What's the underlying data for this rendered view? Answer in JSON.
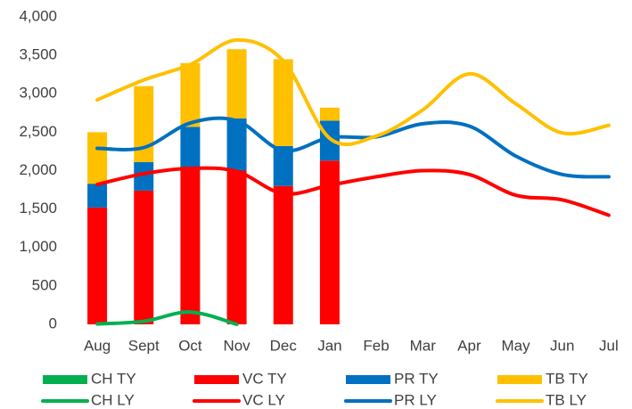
{
  "chart_data": {
    "type": "combo",
    "categories": [
      "Aug",
      "Sept",
      "Oct",
      "Nov",
      "Dec",
      "Jan",
      "Feb",
      "Mar",
      "Apr",
      "May",
      "Jun",
      "Jul"
    ],
    "ylim": [
      0,
      4000
    ],
    "yticks": [
      0,
      500,
      {
        "value": 1000,
        "label": "1,000"
      },
      {
        "value": 1500,
        "label": "1,500"
      },
      {
        "value": 2000,
        "label": "2,000"
      },
      {
        "value": 2500,
        "label": "2,500"
      },
      {
        "value": 3000,
        "label": "3,000"
      },
      {
        "value": 3500,
        "label": "3,500"
      },
      {
        "value": 4000,
        "label": "4,000"
      }
    ],
    "grid": false,
    "legend": "bottom",
    "smooth": true,
    "series": [
      {
        "name": "CH TY",
        "type": "bar",
        "color": "#00b050",
        "values": [
          0,
          0,
          0,
          0,
          0,
          0,
          null,
          null,
          null,
          null,
          null,
          null
        ]
      },
      {
        "name": "VC TY",
        "type": "bar",
        "color": "#ff0000",
        "values": [
          1520,
          1740,
          2040,
          2000,
          1800,
          2130,
          null,
          null,
          null,
          null,
          null,
          null
        ]
      },
      {
        "name": "PR TY",
        "type": "bar",
        "color": "#0070c0",
        "values": [
          310,
          370,
          530,
          680,
          520,
          520,
          null,
          null,
          null,
          null,
          null,
          null
        ]
      },
      {
        "name": "TB TY",
        "type": "bar",
        "color": "#ffc000",
        "values": [
          670,
          990,
          830,
          900,
          1130,
          170,
          null,
          null,
          null,
          null,
          null,
          null
        ]
      },
      {
        "name": "CH LY",
        "type": "line",
        "color": "#00b050",
        "values": [
          5,
          40,
          160,
          0,
          null,
          null,
          null,
          null,
          null,
          null,
          null,
          null
        ]
      },
      {
        "name": "VC LY",
        "type": "line",
        "color": "#ff0000",
        "values": [
          1820,
          1960,
          2030,
          1990,
          1700,
          1810,
          1920,
          2000,
          1950,
          1680,
          1620,
          1420
        ]
      },
      {
        "name": "PR LY",
        "type": "line",
        "color": "#0070c0",
        "values": [
          2290,
          2300,
          2620,
          2650,
          2260,
          2430,
          2440,
          2610,
          2580,
          2190,
          1950,
          1920
        ]
      },
      {
        "name": "TB LY",
        "type": "line",
        "color": "#ffc000",
        "values": [
          2920,
          3180,
          3380,
          3700,
          3430,
          2420,
          2450,
          2790,
          3260,
          2870,
          2490,
          2590
        ]
      }
    ]
  }
}
